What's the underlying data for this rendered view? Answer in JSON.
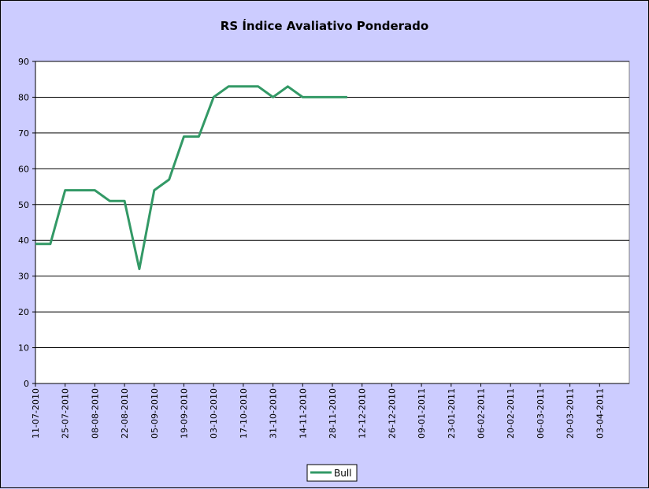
{
  "chart_data": {
    "type": "line",
    "title": "RS Índice Avaliativo Ponderado",
    "xlabel": "",
    "ylabel": "",
    "ylim": [
      0,
      90
    ],
    "yticks": [
      0,
      10,
      20,
      30,
      40,
      50,
      60,
      70,
      80,
      90
    ],
    "xticks": [
      "11-07-2010",
      "25-07-2010",
      "08-08-2010",
      "22-08-2010",
      "05-09-2010",
      "19-09-2010",
      "03-10-2010",
      "17-10-2010",
      "31-10-2010",
      "14-11-2010",
      "28-11-2010",
      "12-12-2010",
      "26-12-2010",
      "09-01-2011",
      "23-01-2011",
      "06-02-2011",
      "20-02-2011",
      "06-03-2011",
      "20-03-2011",
      "03-04-2011"
    ],
    "x_end": "17-04-2011",
    "grid": "horizontal",
    "legend_position": "bottom",
    "series": [
      {
        "name": "Bull",
        "color": "#339966",
        "x": [
          "11-07-2010",
          "18-07-2010",
          "25-07-2010",
          "01-08-2010",
          "08-08-2010",
          "15-08-2010",
          "22-08-2010",
          "29-08-2010",
          "05-09-2010",
          "12-09-2010",
          "19-09-2010",
          "26-09-2010",
          "03-10-2010",
          "10-10-2010",
          "17-10-2010",
          "24-10-2010",
          "31-10-2010",
          "07-11-2010",
          "14-11-2010",
          "21-11-2010",
          "28-11-2010",
          "05-12-2010"
        ],
        "values": [
          39,
          39,
          54,
          54,
          54,
          51,
          51,
          32,
          54,
          57,
          69,
          69,
          80,
          83,
          83,
          83,
          80,
          83,
          80,
          80,
          80,
          80
        ]
      }
    ]
  }
}
